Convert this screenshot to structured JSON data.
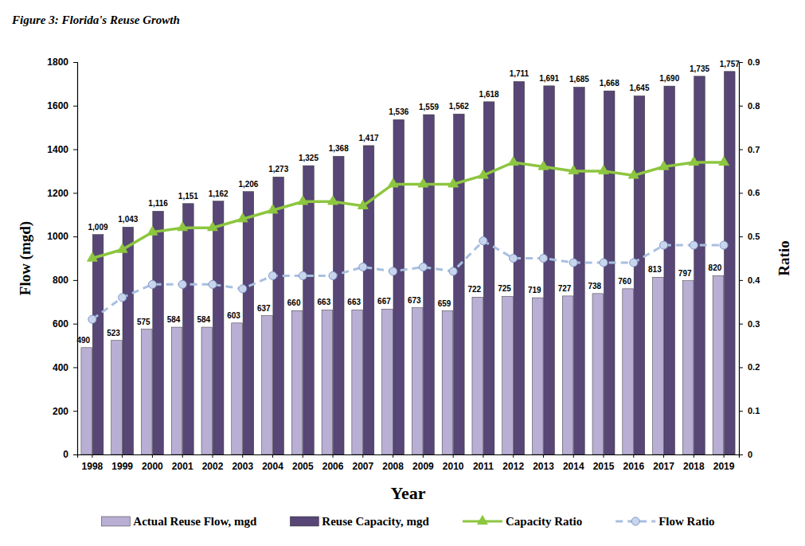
{
  "chart_data": {
    "type": "bar",
    "title": "Figure 3: Florida's Reuse Growth",
    "x_label": "Year",
    "y_label": "Flow (mgd)",
    "y2_label": "Ratio",
    "categories": [
      "1998",
      "1999",
      "2000",
      "2001",
      "2002",
      "2003",
      "2004",
      "2005",
      "2006",
      "2007",
      "2008",
      "2009",
      "2010",
      "2011",
      "2012",
      "2013",
      "2014",
      "2015",
      "2016",
      "2017",
      "2018",
      "2019"
    ],
    "ylim": [
      0,
      1800
    ],
    "yticks": [
      0,
      200,
      400,
      600,
      800,
      1000,
      1200,
      1400,
      1600,
      1800
    ],
    "y2lim": [
      0,
      0.9
    ],
    "y2ticks": [
      0,
      0.1,
      0.2,
      0.3,
      0.4,
      0.5,
      0.6,
      0.7,
      0.8,
      0.9
    ],
    "legend": "bottom",
    "series": [
      {
        "name": "Actual Reuse Flow, mgd",
        "type": "bar",
        "color": "#b9aed3",
        "data_labels": true,
        "values": [
          490,
          523,
          575,
          584,
          584,
          603,
          637,
          660,
          663,
          663,
          667,
          673,
          659,
          722,
          725,
          719,
          727,
          738,
          760,
          813,
          797,
          820
        ]
      },
      {
        "name": "Reuse Capacity, mgd",
        "type": "bar",
        "color": "#574676",
        "data_labels": true,
        "values": [
          1009,
          1043,
          1116,
          1151,
          1162,
          1206,
          1273,
          1325,
          1368,
          1417,
          1536,
          1559,
          1562,
          1618,
          1711,
          1691,
          1685,
          1668,
          1645,
          1690,
          1735,
          1757
        ],
        "value_labels": [
          "1,009",
          "1,043",
          "1,116",
          "1,151",
          "1,162",
          "1,206",
          "1,273",
          "1,325",
          "1,368",
          "1,417",
          "1,536",
          "1,559",
          "1,562",
          "1,618",
          "1,711",
          "1,691",
          "1,685",
          "1,668",
          "1,645",
          "1,690",
          "1,735",
          "1,757"
        ]
      },
      {
        "name": "Capacity Ratio",
        "type": "line",
        "axis": "y2",
        "color": "#8dc63f",
        "marker": "triangle",
        "line_style": "solid",
        "values": [
          0.45,
          0.47,
          0.51,
          0.52,
          0.52,
          0.54,
          0.56,
          0.58,
          0.58,
          0.57,
          0.62,
          0.62,
          0.62,
          0.64,
          0.67,
          0.66,
          0.65,
          0.65,
          0.64,
          0.66,
          0.67,
          0.67
        ]
      },
      {
        "name": "Flow Ratio",
        "type": "line",
        "axis": "y2",
        "color": "#a8bfe0",
        "marker": "circle",
        "line_style": "dashed",
        "values": [
          0.31,
          0.36,
          0.39,
          0.39,
          0.39,
          0.38,
          0.41,
          0.41,
          0.41,
          0.43,
          0.42,
          0.43,
          0.42,
          0.49,
          0.45,
          0.45,
          0.44,
          0.44,
          0.44,
          0.48,
          0.48,
          0.48
        ]
      }
    ]
  }
}
